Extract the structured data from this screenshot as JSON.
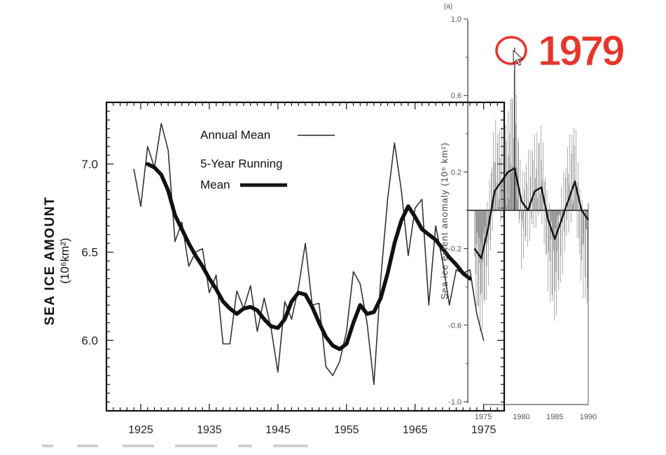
{
  "left_chart": {
    "ylabel": "SEA ICE AMOUNT",
    "ylabel_units": "(10⁶km²)",
    "xticks": [
      "1925",
      "1935",
      "1945",
      "1955",
      "1965",
      "1975"
    ],
    "yticks": [
      "6.0",
      "6.5",
      "7.0"
    ],
    "legend": {
      "annual": "Annual Mean",
      "running_line1": "5-Year Running",
      "running_line2": "Mean"
    }
  },
  "right_chart": {
    "ylabel": "Sea ice extent anomaly (10⁶ km²)",
    "top_label": "(a)",
    "yticks": [
      "1.0",
      "0.6",
      "0.2",
      "-0.2",
      "-0.6",
      "-1.0"
    ],
    "xticks": [
      "1975",
      "1980",
      "1985",
      "1990"
    ]
  },
  "annotation": {
    "text": "1979",
    "color": "#e8352b"
  },
  "chart_data": [
    {
      "type": "line",
      "x": [
        1924,
        1925,
        1926,
        1927,
        1928,
        1929,
        1930,
        1931,
        1932,
        1933,
        1934,
        1935,
        1936,
        1937,
        1938,
        1939,
        1940,
        1941,
        1942,
        1943,
        1944,
        1945,
        1946,
        1947,
        1948,
        1949,
        1950,
        1951,
        1952,
        1953,
        1954,
        1955,
        1956,
        1957,
        1958,
        1959,
        1960,
        1961,
        1962,
        1963,
        1964,
        1965,
        1966,
        1967,
        1968,
        1969,
        1970,
        1971,
        1972,
        1973,
        1974,
        1975
      ],
      "series": [
        {
          "name": "Annual Mean",
          "values": [
            6.97,
            6.76,
            7.1,
            6.98,
            7.23,
            7.08,
            6.56,
            6.67,
            6.42,
            6.5,
            6.52,
            6.27,
            6.37,
            5.98,
            5.98,
            6.28,
            6.18,
            6.31,
            6.05,
            6.24,
            6.07,
            5.82,
            6.22,
            6.12,
            6.3,
            6.55,
            6.2,
            6.21,
            5.85,
            5.8,
            5.88,
            6.05,
            6.39,
            6.32,
            6.1,
            5.75,
            6.35,
            6.8,
            7.12,
            6.85,
            6.48,
            6.75,
            6.8,
            6.2,
            6.65,
            6.45,
            6.2,
            6.4,
            6.38,
            6.4,
            6.15,
            6.0
          ],
          "color": "#333333"
        },
        {
          "name": "5-Year Running Mean",
          "values": [
            null,
            null,
            7.0,
            6.98,
            6.94,
            6.85,
            6.71,
            6.63,
            6.55,
            6.48,
            6.42,
            6.35,
            6.29,
            6.22,
            6.18,
            6.15,
            6.18,
            6.19,
            6.17,
            6.12,
            6.08,
            6.07,
            6.12,
            6.22,
            6.27,
            6.26,
            6.19,
            6.1,
            6.02,
            5.97,
            5.95,
            5.98,
            6.1,
            6.2,
            6.15,
            6.16,
            6.24,
            6.38,
            6.55,
            6.68,
            6.76,
            6.7,
            6.63,
            6.6,
            6.57,
            6.52,
            6.47,
            6.43,
            6.38,
            6.35,
            null,
            null
          ],
          "color": "#111111"
        }
      ],
      "xlim": [
        1920,
        1978
      ],
      "ylim": [
        5.6,
        7.35
      ]
    },
    {
      "type": "line",
      "x": [
        1973,
        1974,
        1975,
        1976,
        1977,
        1978,
        1979,
        1980,
        1981,
        1982,
        1983,
        1984,
        1985,
        1986,
        1987,
        1988,
        1989,
        1990
      ],
      "series": [
        {
          "name": "smoothed anomaly",
          "values": [
            -0.2,
            -0.25,
            -0.1,
            0.1,
            0.15,
            0.2,
            0.22,
            0.05,
            0.0,
            0.1,
            0.12,
            -0.05,
            -0.15,
            -0.05,
            0.05,
            0.15,
            0.0,
            -0.05
          ],
          "color": "#111111"
        },
        {
          "name": "monthly anomaly",
          "values": [
            -0.4,
            -0.7,
            -0.3,
            0.4,
            0.3,
            0.45,
            0.85,
            -0.1,
            0.1,
            0.25,
            0.35,
            -0.3,
            -0.6,
            -0.2,
            0.2,
            0.4,
            -0.3,
            -0.5
          ],
          "color": "#555555"
        }
      ],
      "xlim": [
        1972,
        1990
      ],
      "ylim": [
        -1.0,
        1.1
      ]
    }
  ]
}
